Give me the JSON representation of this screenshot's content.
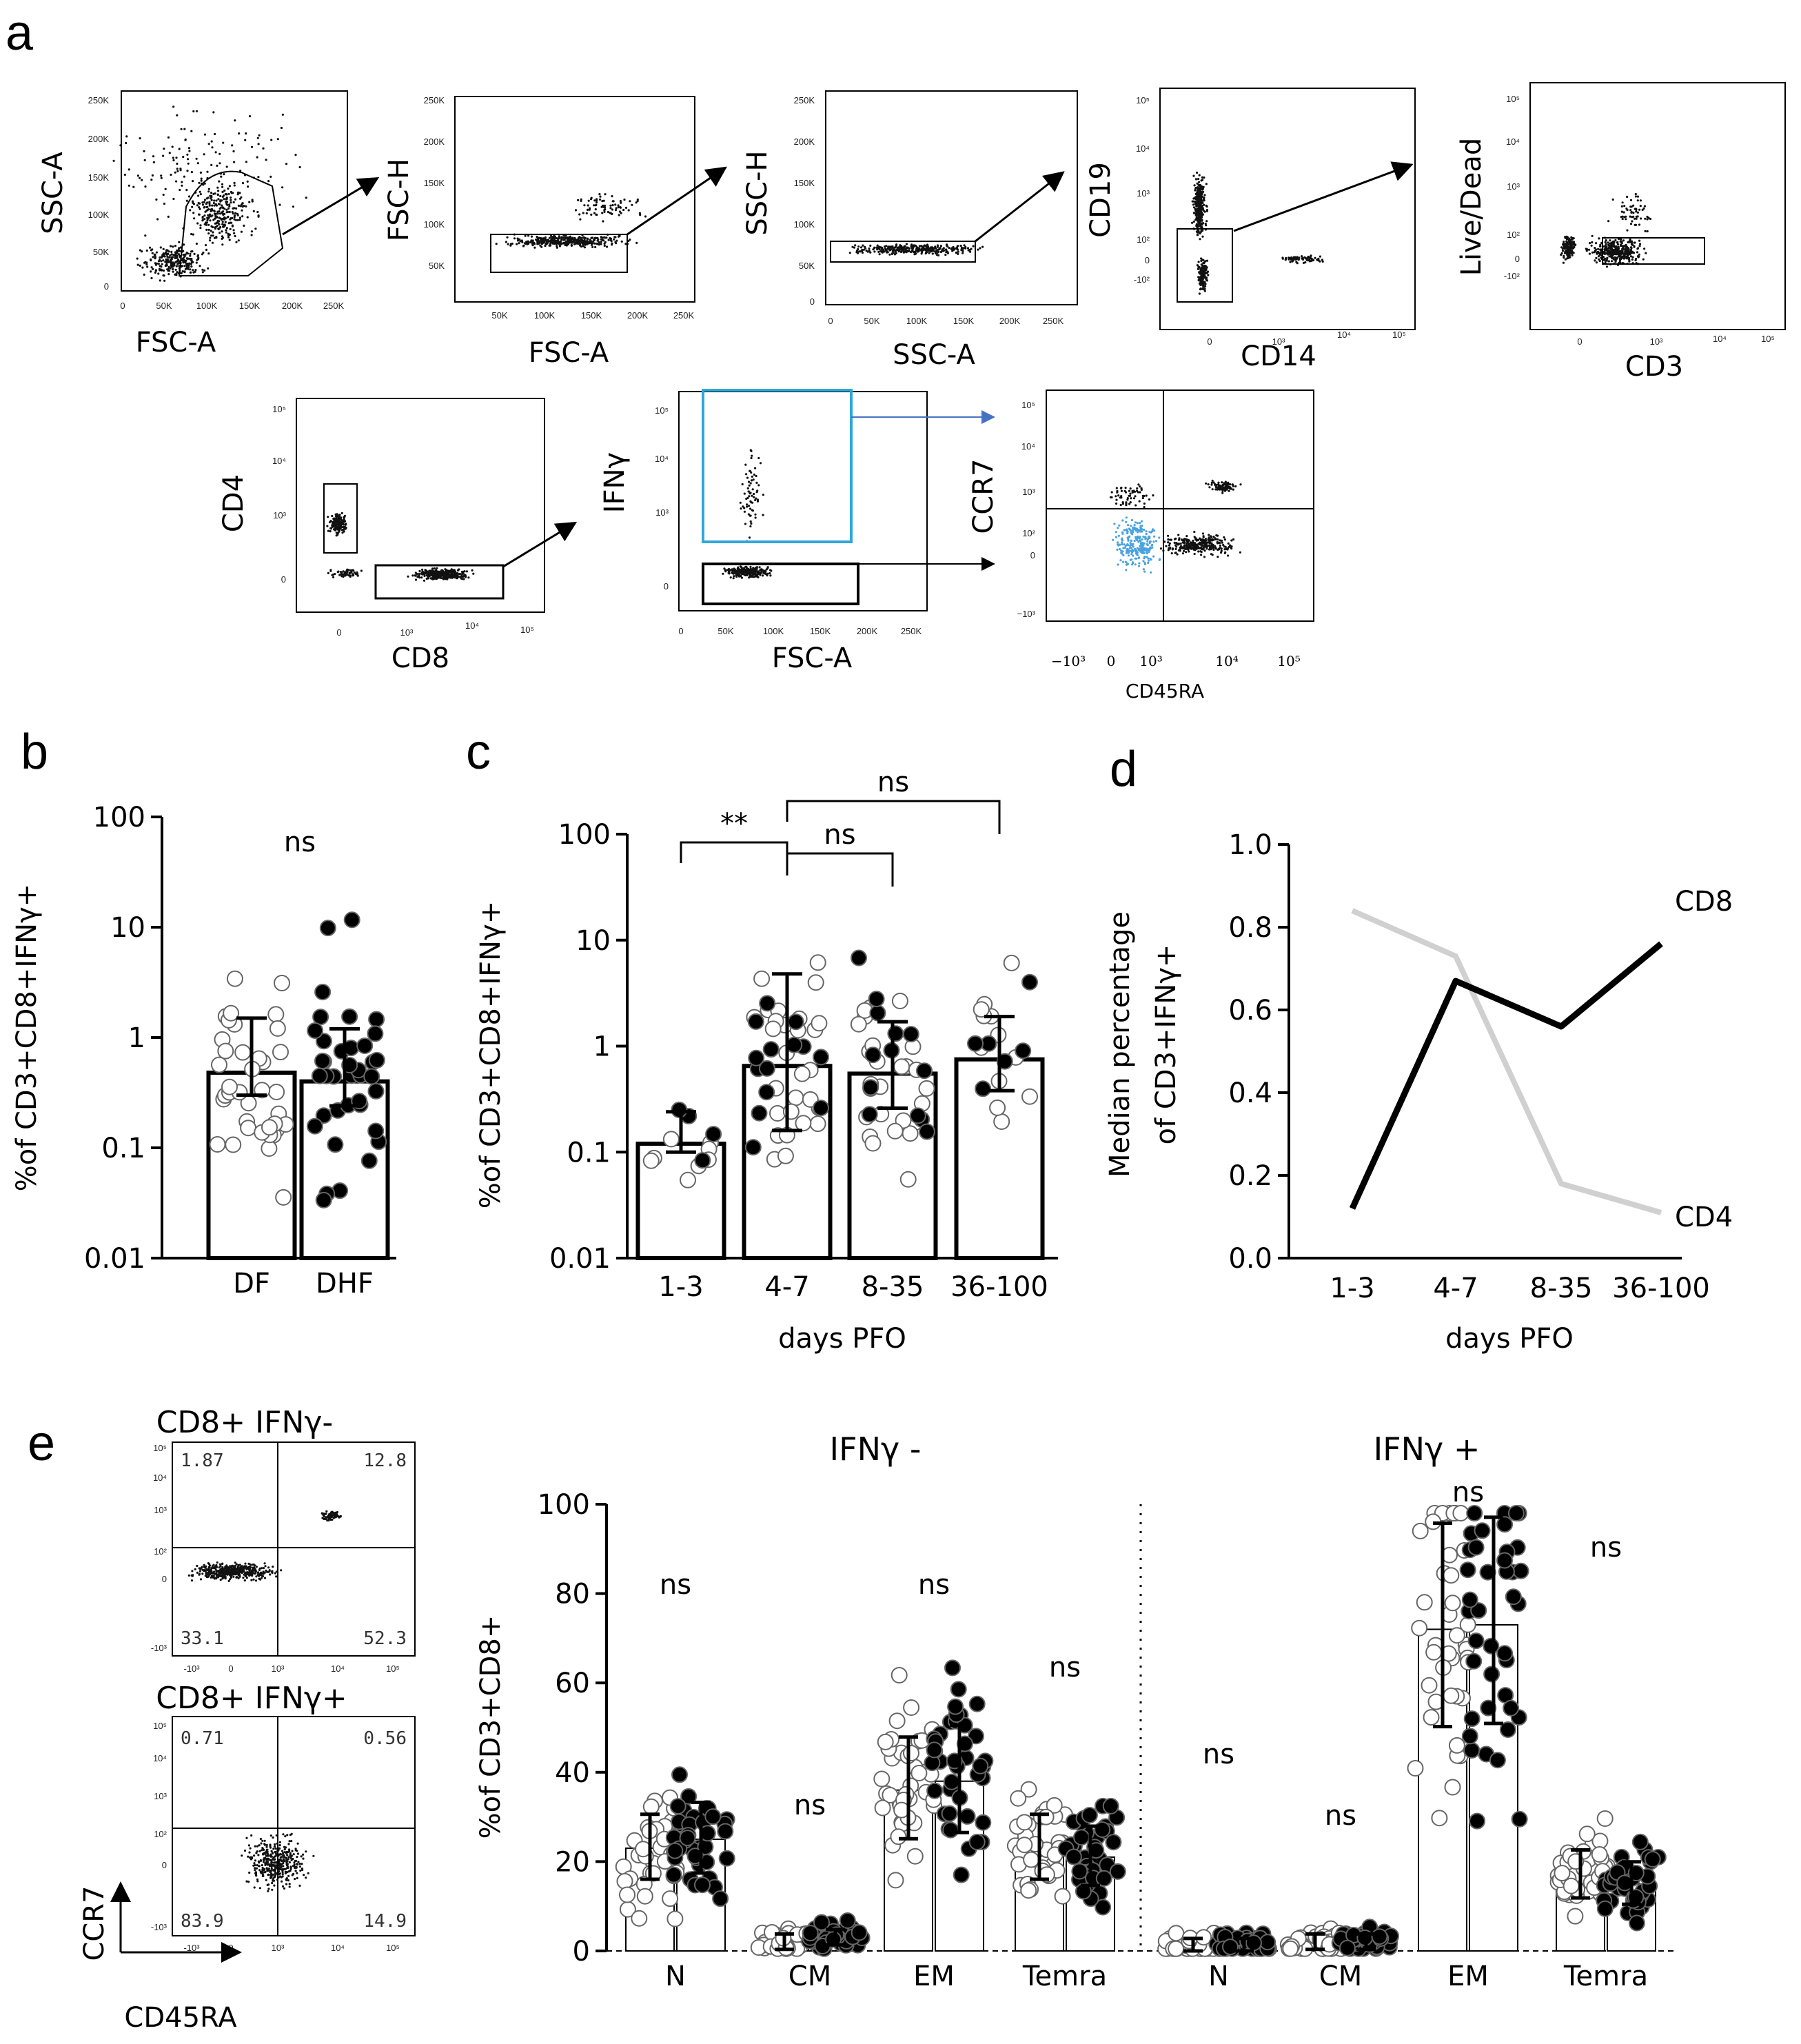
{
  "panels": {
    "a": "a",
    "b": "b",
    "c": "c",
    "d": "d",
    "e": "e"
  },
  "gating": {
    "p1": {
      "x": "FSC-A",
      "y": "SSC-A",
      "xt": [
        "0",
        "50K",
        "100K",
        "150K",
        "200K",
        "250K"
      ],
      "yt": [
        "0",
        "50K",
        "100K",
        "150K",
        "200K",
        "250K"
      ]
    },
    "p2": {
      "x": "FSC-A",
      "y": "FSC-H",
      "xt": [
        "50K",
        "100K",
        "150K",
        "200K",
        "250K"
      ],
      "yt": [
        "50K",
        "100K",
        "150K",
        "200K",
        "250K"
      ]
    },
    "p3": {
      "x": "SSC-A",
      "y": "SSC-H",
      "xt": [
        "0",
        "50K",
        "100K",
        "150K",
        "200K",
        "250K"
      ],
      "yt": [
        "0",
        "50K",
        "100K",
        "150K",
        "200K",
        "250K"
      ]
    },
    "p4": {
      "x": "CD14",
      "y": "CD19",
      "xt": [
        "0",
        "10³",
        "10⁴",
        "10⁵"
      ],
      "yt": [
        "-10²",
        "0",
        "10²",
        "10³",
        "10⁴",
        "10⁵"
      ]
    },
    "p5": {
      "x": "CD3",
      "y": "Live/Dead",
      "xt": [
        "0",
        "10³",
        "10⁴",
        "10⁵"
      ],
      "yt": [
        "-10²",
        "0",
        "10²",
        "10³",
        "10⁴",
        "10⁵"
      ]
    },
    "p6": {
      "x": "CD8",
      "y": "CD4",
      "xt": [
        "0",
        "10³",
        "10⁴",
        "10⁵"
      ],
      "yt": [
        "0",
        "10³",
        "10⁴",
        "10⁵"
      ]
    },
    "p7": {
      "x": "FSC-A",
      "y": "IFNγ",
      "xt": [
        "0",
        "50K",
        "100K",
        "150K",
        "200K",
        "250K"
      ],
      "yt": [
        "0",
        "10³",
        "10⁴",
        "10⁵"
      ]
    },
    "p8": {
      "x": "CD45RA",
      "y": "CCR7",
      "xt": [
        "−10³",
        "0",
        "10³",
        "10⁴",
        "10⁵"
      ],
      "yt": [
        "−10³",
        "0",
        "10²",
        "10³",
        "10⁴",
        "10⁵"
      ]
    }
  },
  "quadrants": {
    "neg": {
      "title": "CD8+ IFNγ-",
      "tl": "1.87",
      "tr": "12.8",
      "bl": "33.1",
      "br": "52.3"
    },
    "pos": {
      "title": "CD8+ IFNγ+",
      "tl": "0.71",
      "tr": "0.56",
      "bl": "83.9",
      "br": "14.9"
    },
    "xlabel": "CD45RA",
    "ylabel": "CCR7",
    "xt": [
      "-10³",
      "0",
      "10³",
      "10⁴",
      "10⁵"
    ],
    "yt": [
      "-10³",
      "0",
      "10²",
      "10³",
      "10⁴",
      "10⁵"
    ]
  },
  "colors": {
    "dark": "#000000",
    "light_gray": "#d0d0d0",
    "ifng_blue": "#4aa3df",
    "gate_blue": "#2fa8d8",
    "arrow_blue": "#4472c4"
  },
  "chart_data": [
    {
      "id": "b",
      "type": "bar",
      "ylabel": "%of CD3+CD8+IFNγ+",
      "yscale": "log",
      "ylim": [
        0.01,
        100
      ],
      "yticks": [
        "0.01",
        "0.1",
        "1",
        "10",
        "100"
      ],
      "categories": [
        "DF",
        "DHF"
      ],
      "values": [
        0.48,
        0.4
      ],
      "error_low": [
        0.3,
        0.24
      ],
      "error_high": [
        1.5,
        1.2
      ],
      "significance": "ns"
    },
    {
      "id": "c",
      "type": "bar",
      "ylabel": "%of CD3+CD8+IFNγ+",
      "xlabel": "days PFO",
      "yscale": "log",
      "ylim": [
        0.01,
        100
      ],
      "yticks": [
        "0.01",
        "0.1",
        "1",
        "10",
        "100"
      ],
      "categories": [
        "1-3",
        "4-7",
        "8-35",
        "36-100"
      ],
      "values": [
        0.12,
        0.65,
        0.55,
        0.75
      ],
      "error_low": [
        0.1,
        0.16,
        0.26,
        0.38
      ],
      "error_high": [
        0.24,
        4.8,
        1.7,
        1.9
      ],
      "comparisons": [
        {
          "from": "1-3",
          "to": "4-7",
          "label": "**"
        },
        {
          "from": "4-7",
          "to": "8-35",
          "label": "ns"
        },
        {
          "from": "4-7",
          "to": "36-100",
          "label": "ns"
        }
      ]
    },
    {
      "id": "d",
      "type": "line",
      "ylabel": "Median percentage of CD3+IFNγ+",
      "ylabel_lines": [
        "Median percentage",
        "of CD3+IFNγ+"
      ],
      "xlabel": "days PFO",
      "ylim": [
        0.0,
        1.0
      ],
      "yticks": [
        "0.0",
        "0.2",
        "0.4",
        "0.6",
        "0.8",
        "1.0"
      ],
      "categories": [
        "1-3",
        "4-7",
        "8-35",
        "36-100"
      ],
      "series": [
        {
          "name": "CD8",
          "values": [
            0.12,
            0.67,
            0.56,
            0.76
          ]
        },
        {
          "name": "CD4",
          "values": [
            0.84,
            0.73,
            0.18,
            0.11
          ]
        }
      ]
    },
    {
      "id": "e",
      "type": "bar",
      "ylabel": "%of CD3+CD8+",
      "ylim": [
        0,
        100
      ],
      "yticks": [
        "0",
        "20",
        "40",
        "60",
        "80",
        "100"
      ],
      "groups": [
        "IFNγ -",
        "IFNγ +"
      ],
      "categories": [
        "N",
        "CM",
        "EM",
        "Temra",
        "N",
        "CM",
        "EM",
        "Temra"
      ],
      "series": [
        {
          "name": "DF",
          "values": [
            23,
            2,
            36,
            23,
            1,
            2,
            72,
            17
          ]
        },
        {
          "name": "DHF",
          "values": [
            25,
            3,
            38,
            21,
            1,
            2,
            73,
            15
          ]
        }
      ],
      "significance": [
        "ns",
        "ns",
        "ns",
        "ns",
        "ns",
        "ns",
        "ns",
        "ns"
      ]
    }
  ]
}
